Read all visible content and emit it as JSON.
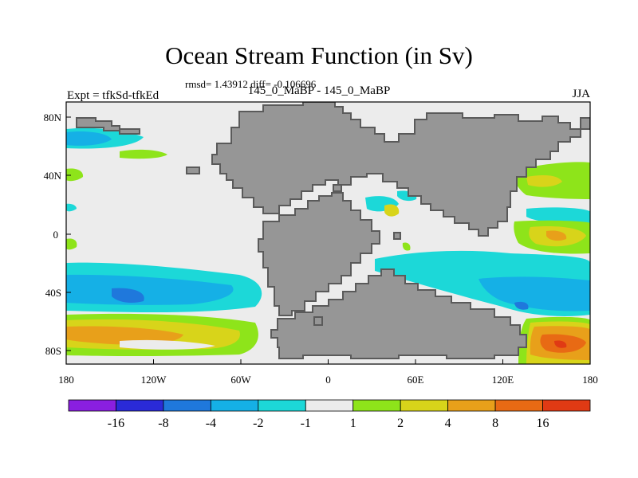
{
  "title": "Ocean Stream Function (in Sv)",
  "stats": "rmsd= 1.43912 diff= -0.106696",
  "left_label": "Expt = tfkSd-tfkEd",
  "center_label": "145_0_MaBP - 145_0_MaBP",
  "right_label": "JJA",
  "axes": {
    "x_ticks": [
      "180",
      "120W",
      "60W",
      "0",
      "60E",
      "120E",
      "180"
    ],
    "y_ticks": [
      "80N",
      "40N",
      "0",
      "40S",
      "80S"
    ]
  },
  "colorbar": {
    "labels": [
      "-16",
      "-8",
      "-4",
      "-2",
      "-1",
      "1",
      "2",
      "4",
      "8",
      "16"
    ],
    "colors": [
      "#8a1fe0",
      "#2a2ad8",
      "#1f78dc",
      "#15b0e6",
      "#1cd8d8",
      "#ececec",
      "#8ee41a",
      "#d8d41a",
      "#e8a01a",
      "#e86a14",
      "#e03a14"
    ]
  },
  "colors": {
    "land": "#969696",
    "ocean": "#ececec",
    "coast_outline": "#5a5a5a"
  }
}
